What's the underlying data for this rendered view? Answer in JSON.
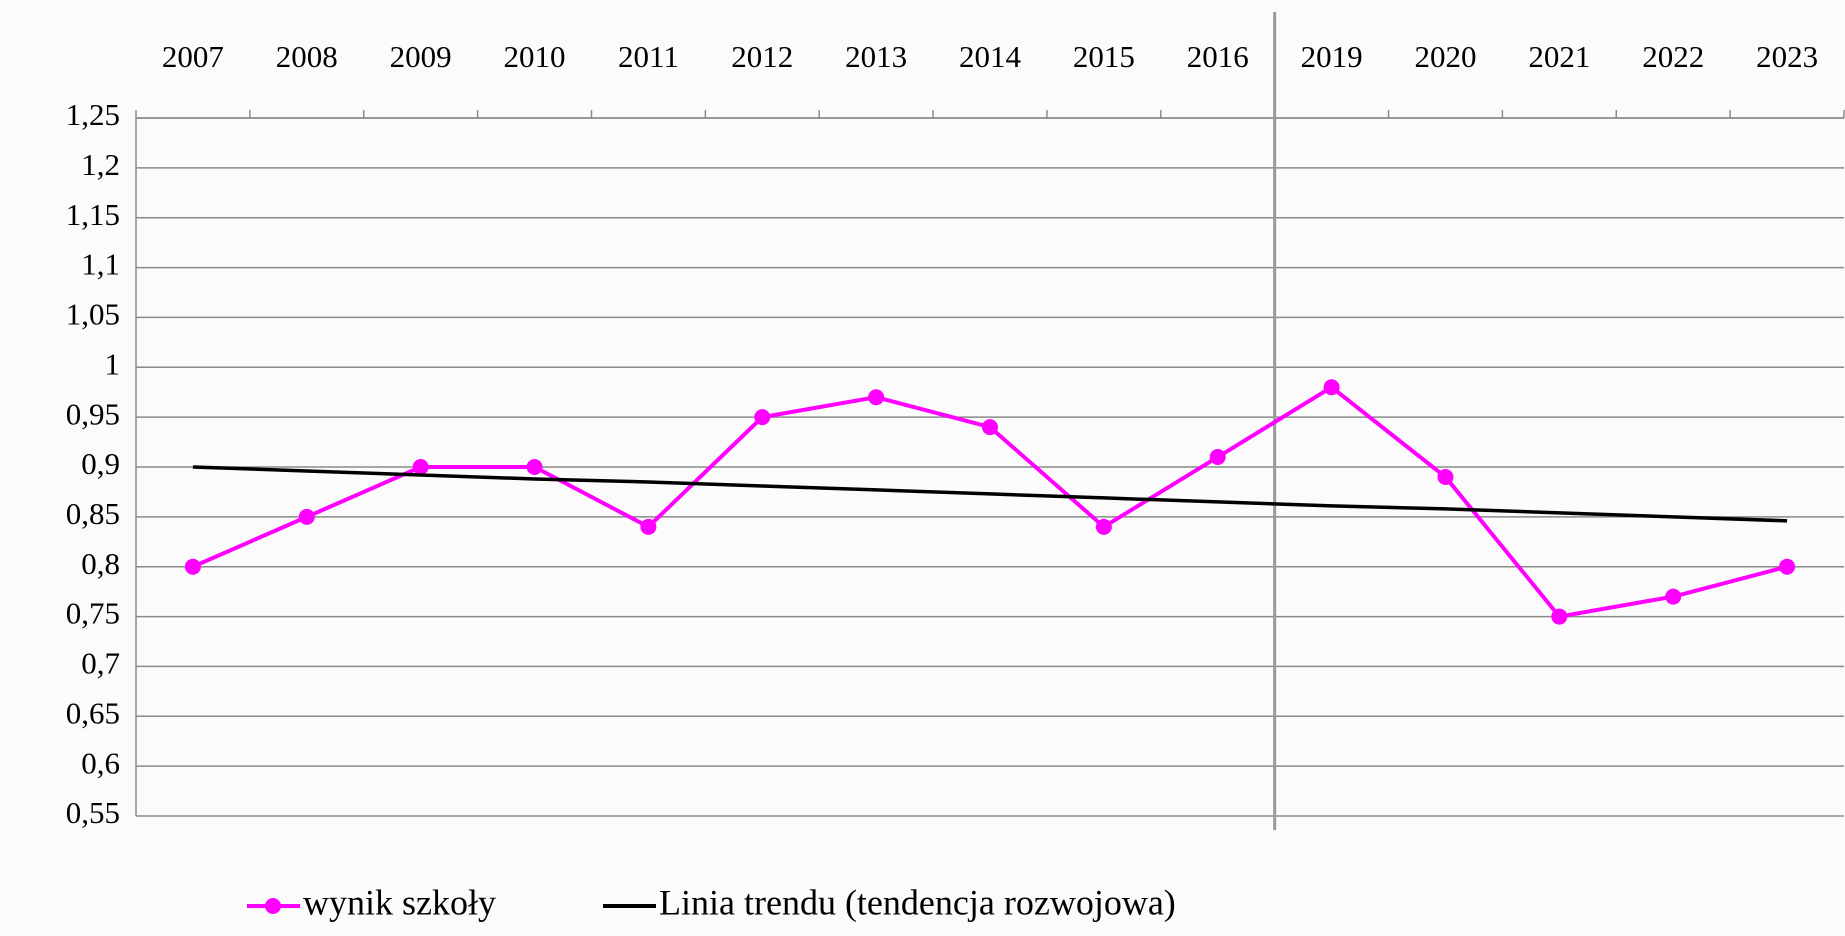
{
  "chart_data": {
    "type": "line",
    "categories": [
      "2007",
      "2008",
      "2009",
      "2010",
      "2011",
      "2012",
      "2013",
      "2014",
      "2015",
      "2016",
      "2019",
      "2020",
      "2021",
      "2022",
      "2023"
    ],
    "series": [
      {
        "name": "wynik szkoły",
        "color": "#ff00ff",
        "values": [
          0.8,
          0.85,
          0.9,
          0.9,
          0.84,
          0.95,
          0.97,
          0.94,
          0.84,
          0.91,
          0.98,
          0.89,
          0.75,
          0.77,
          0.8
        ]
      },
      {
        "name": "Linia trendu (tendencja rozwojowa)",
        "color": "#000000",
        "values": [
          0.9,
          0.896,
          0.892,
          0.888,
          0.885,
          0.881,
          0.877,
          0.873,
          0.869,
          0.865,
          0.861,
          0.858,
          0.854,
          0.85,
          0.846
        ]
      }
    ],
    "ylim": [
      0.55,
      1.25
    ],
    "yticks": [
      {
        "value": 0.55,
        "label": "0,55"
      },
      {
        "value": 0.6,
        "label": "0,6"
      },
      {
        "value": 0.65,
        "label": "0,65"
      },
      {
        "value": 0.7,
        "label": "0,7"
      },
      {
        "value": 0.75,
        "label": "0,75"
      },
      {
        "value": 0.8,
        "label": "0,8"
      },
      {
        "value": 0.85,
        "label": "0,85"
      },
      {
        "value": 0.9,
        "label": "0,9"
      },
      {
        "value": 0.95,
        "label": "0,95"
      },
      1,
      {
        "value": 1.05,
        "label": "1,05"
      },
      {
        "value": 1.1,
        "label": "1,1"
      },
      {
        "value": 1.15,
        "label": "1,15"
      },
      {
        "value": 1.2,
        "label": "1,2"
      },
      {
        "value": 1.25,
        "label": "1,25"
      }
    ],
    "grid": true
  }
}
